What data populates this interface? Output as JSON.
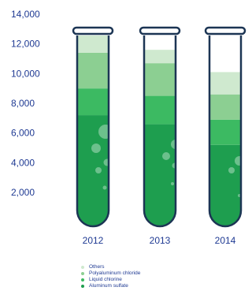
{
  "chart_data": {
    "type": "bar",
    "stacked": true,
    "categories": [
      "2012",
      "2013",
      "2014"
    ],
    "ylim": [
      0,
      14000
    ],
    "yticks": [
      "14,000",
      "12,000",
      "10,000",
      "8,000",
      "6,000",
      "4,000",
      "2,000"
    ],
    "series": [
      {
        "name": "Aluminum sulfate",
        "color": "#1e9e4f",
        "values": [
          7200,
          6600,
          5200
        ]
      },
      {
        "name": "Liquid chlorine",
        "color": "#3cba62",
        "values": [
          1800,
          1900,
          1700
        ]
      },
      {
        "name": "Polyaluminum chloride",
        "color": "#8ccf92",
        "values": [
          2400,
          2200,
          1700
        ]
      },
      {
        "name": "Others",
        "color": "#cfe9cf",
        "values": [
          1200,
          900,
          1500
        ]
      }
    ],
    "legend": {
      "placement": "bottom",
      "order": [
        "Others",
        "Polyaluminum chloride",
        "Liquid chlorine",
        "Aluminum sulfate"
      ]
    }
  }
}
